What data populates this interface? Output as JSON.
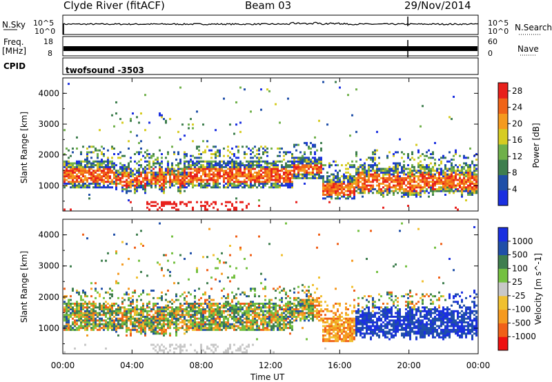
{
  "header": {
    "station": "Clyde River (fitACF)",
    "beam": "Beam 03",
    "date": "29/Nov/2014"
  },
  "strips": {
    "nsky_label": "N.Sky",
    "nsky_ticks": [
      "10^5",
      "10^0"
    ],
    "nsearch_label": "N.Search",
    "nsearch_ticks": [
      "10^5",
      "10^0"
    ],
    "freq_label_1": "Freq.",
    "freq_label_2": "[MHz]",
    "freq_ticks": [
      "18",
      "8"
    ],
    "nave_label": "Nave",
    "nave_ticks": [
      "60",
      "0"
    ],
    "cpid_label": "CPID",
    "cpid_value": "twofsound -3503"
  },
  "colors": {
    "power_scale": [
      "#1a2fe0",
      "#1f4fa8",
      "#3e7e4e",
      "#6fb04a",
      "#d6cc22",
      "#f59a1e",
      "#f06418",
      "#e8201c"
    ],
    "velocity_scale": [
      "#ee1010",
      "#f06018",
      "#f59a20",
      "#f0c030",
      "#c8c8c8",
      "#74c040",
      "#3e7e4e",
      "#1f4fa8",
      "#1a2fe0"
    ]
  },
  "chart_data": [
    {
      "type": "heatmap",
      "name": "power",
      "ylabel": "Slant Range [km]",
      "ylim": [
        180,
        4500
      ],
      "yticks": [
        "4000",
        "3000",
        "2000",
        "1000"
      ],
      "xlim": [
        "00:00",
        "24:00"
      ],
      "colorbar_label": "Power [dB]",
      "colorbar_ticks": [
        "28",
        "24",
        "20",
        "16",
        "12",
        "8",
        "4"
      ],
      "colorbar_range": [
        0,
        30
      ]
    },
    {
      "type": "heatmap",
      "name": "velocity",
      "ylabel": "Slant Range [km]",
      "ylim": [
        180,
        4500
      ],
      "yticks": [
        "4000",
        "3000",
        "2000",
        "1000"
      ],
      "xlim": [
        "00:00",
        "24:00"
      ],
      "colorbar_label": "Velocity [m s^-1]",
      "colorbar_ticks": [
        "1000",
        "500",
        "100",
        "25",
        "-25",
        "-100",
        "-500",
        "-1000"
      ],
      "colorbar_range": [
        -1000,
        1000
      ]
    }
  ],
  "xaxis": {
    "ticks": [
      "00:00",
      "04:00",
      "08:00",
      "12:00",
      "16:00",
      "20:00",
      "00:00"
    ],
    "label": "Time UT"
  }
}
